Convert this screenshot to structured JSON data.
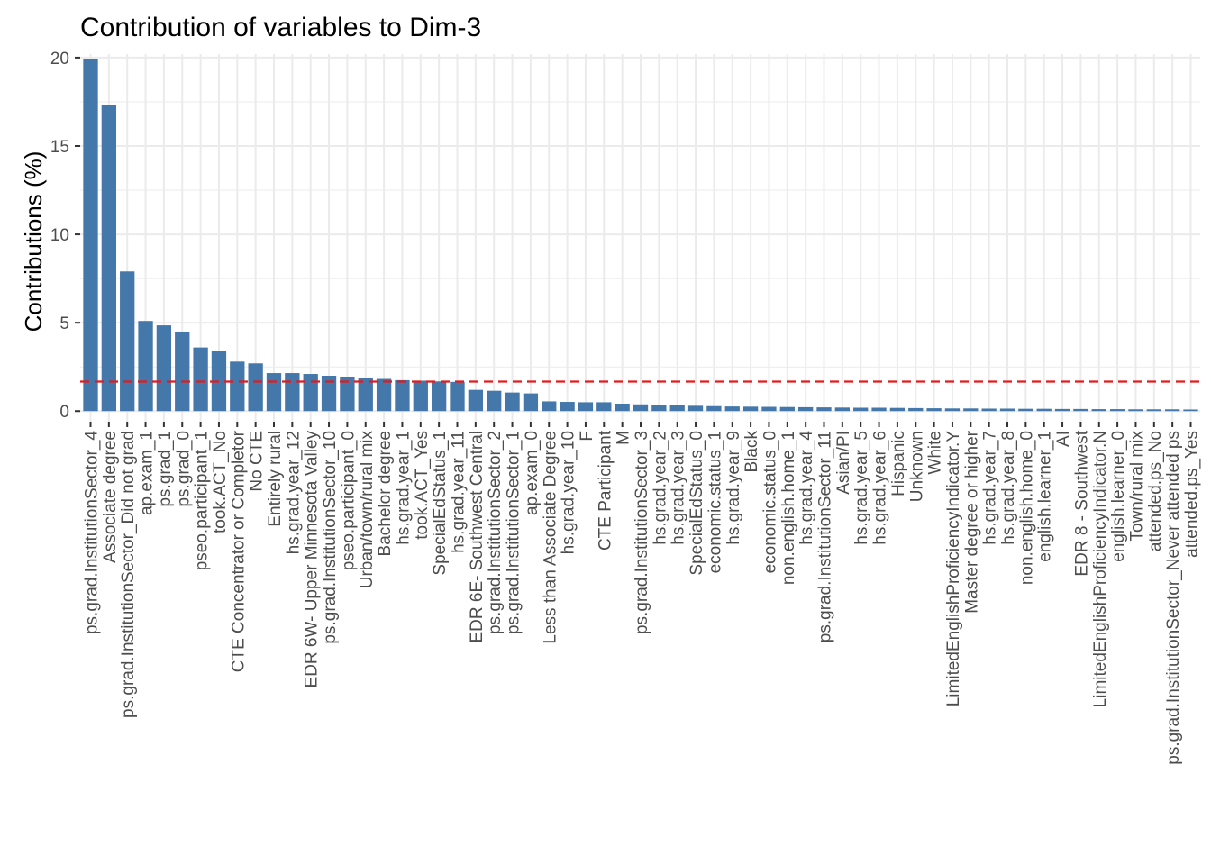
{
  "chart_data": {
    "type": "bar",
    "title": "Contribution of variables to Dim-3",
    "xlabel": "",
    "ylabel": "Contributions (%)",
    "ylim": [
      -0.6,
      20.2
    ],
    "yticks": [
      0,
      5,
      10,
      15,
      20
    ],
    "grid": true,
    "bar_color": "#4477AA",
    "reference_line": {
      "value": 1.67,
      "color": "#E41A1C",
      "style": "dashed"
    },
    "categories": [
      "ps.grad.InstitutionSector_4",
      "Associate degree",
      "ps.grad.InstitutionSector_Did not grad",
      "ap.exam_1",
      "ps.grad_1",
      "ps.grad_0",
      "pseo.participant_1",
      "took.ACT_No",
      "CTE Concentrator or Completor",
      "No CTE",
      "Entirely rural",
      "hs.grad.year_12",
      "EDR 6W- Upper Minnesota Valley",
      "ps.grad.InstitutionSector_10",
      "pseo.participant_0",
      "Urban/town/rural mix",
      "Bachelor degree",
      "hs.grad.year_1",
      "took.ACT_Yes",
      "SpecialEdStatus_1",
      "hs.grad.year_11",
      "EDR 6E- Southwest Central",
      "ps.grad.InstitutionSector_2",
      "ps.grad.InstitutionSector_1",
      "ap.exam_0",
      "Less than Associate Degree",
      "hs.grad.year_10",
      "F",
      "CTE Participant",
      "M",
      "ps.grad.InstitutionSector_3",
      "hs.grad.year_2",
      "hs.grad.year_3",
      "SpecialEdStatus_0",
      "economic.status_1",
      "hs.grad.year_9",
      "Black",
      "economic.status_0",
      "non.english.home_1",
      "hs.grad.year_4",
      "ps.grad.InstitutionSector_11",
      "Asian/PI",
      "hs.grad.year_5",
      "hs.grad.year_6",
      "Hispanic",
      "Unknown",
      "White",
      "LimitedEnglishProficiencyIndicator.Y",
      "Master degree or higher",
      "hs.grad.year_7",
      "hs.grad.year_8",
      "non.english.home_0",
      "english.learner_1",
      "AI",
      "EDR 8 - Southwest",
      "LimitedEnglishProficiencyIndicator.N",
      "english.learner_0",
      "Town/rural mix",
      "attended.ps_No",
      "ps.grad.InstitutionSector_Never attended ps",
      "attended.ps_Yes"
    ],
    "values": [
      19.9,
      17.3,
      7.9,
      5.1,
      4.85,
      4.5,
      3.6,
      3.4,
      2.8,
      2.7,
      2.15,
      2.15,
      2.1,
      2.0,
      1.95,
      1.85,
      1.82,
      1.75,
      1.72,
      1.68,
      1.65,
      1.2,
      1.15,
      1.05,
      1.0,
      0.55,
      0.52,
      0.5,
      0.5,
      0.42,
      0.38,
      0.36,
      0.34,
      0.3,
      0.28,
      0.26,
      0.25,
      0.24,
      0.23,
      0.22,
      0.21,
      0.2,
      0.19,
      0.19,
      0.18,
      0.17,
      0.16,
      0.15,
      0.15,
      0.14,
      0.14,
      0.13,
      0.13,
      0.12,
      0.12,
      0.11,
      0.11,
      0.1,
      0.1,
      0.1,
      0.09
    ]
  }
}
